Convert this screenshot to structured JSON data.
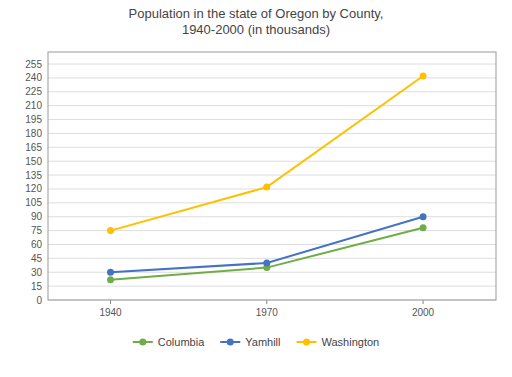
{
  "chart_data": {
    "type": "line",
    "title": "Population in the state of Oregon by County,\n1940-2000 (in thousands)",
    "x": [
      1940,
      1970,
      2000
    ],
    "series": [
      {
        "name": "Columbia",
        "color": "#70AD47",
        "marker": "circle",
        "values": [
          22,
          35,
          78
        ]
      },
      {
        "name": "Yamhill",
        "color": "#4472C4",
        "marker": "circle",
        "values": [
          30,
          40,
          90
        ]
      },
      {
        "name": "Washington",
        "color": "#FFC000",
        "marker": "circle",
        "values": [
          75,
          122,
          242
        ]
      }
    ],
    "xlim": [
      1928,
      2014
    ],
    "xticks": [
      1940,
      1970,
      2000
    ],
    "ylim": [
      0,
      268
    ],
    "yticks": [
      0,
      15,
      30,
      45,
      60,
      75,
      90,
      105,
      120,
      135,
      150,
      165,
      180,
      195,
      210,
      225,
      240,
      255
    ],
    "grid": true,
    "legend": "bottom"
  }
}
